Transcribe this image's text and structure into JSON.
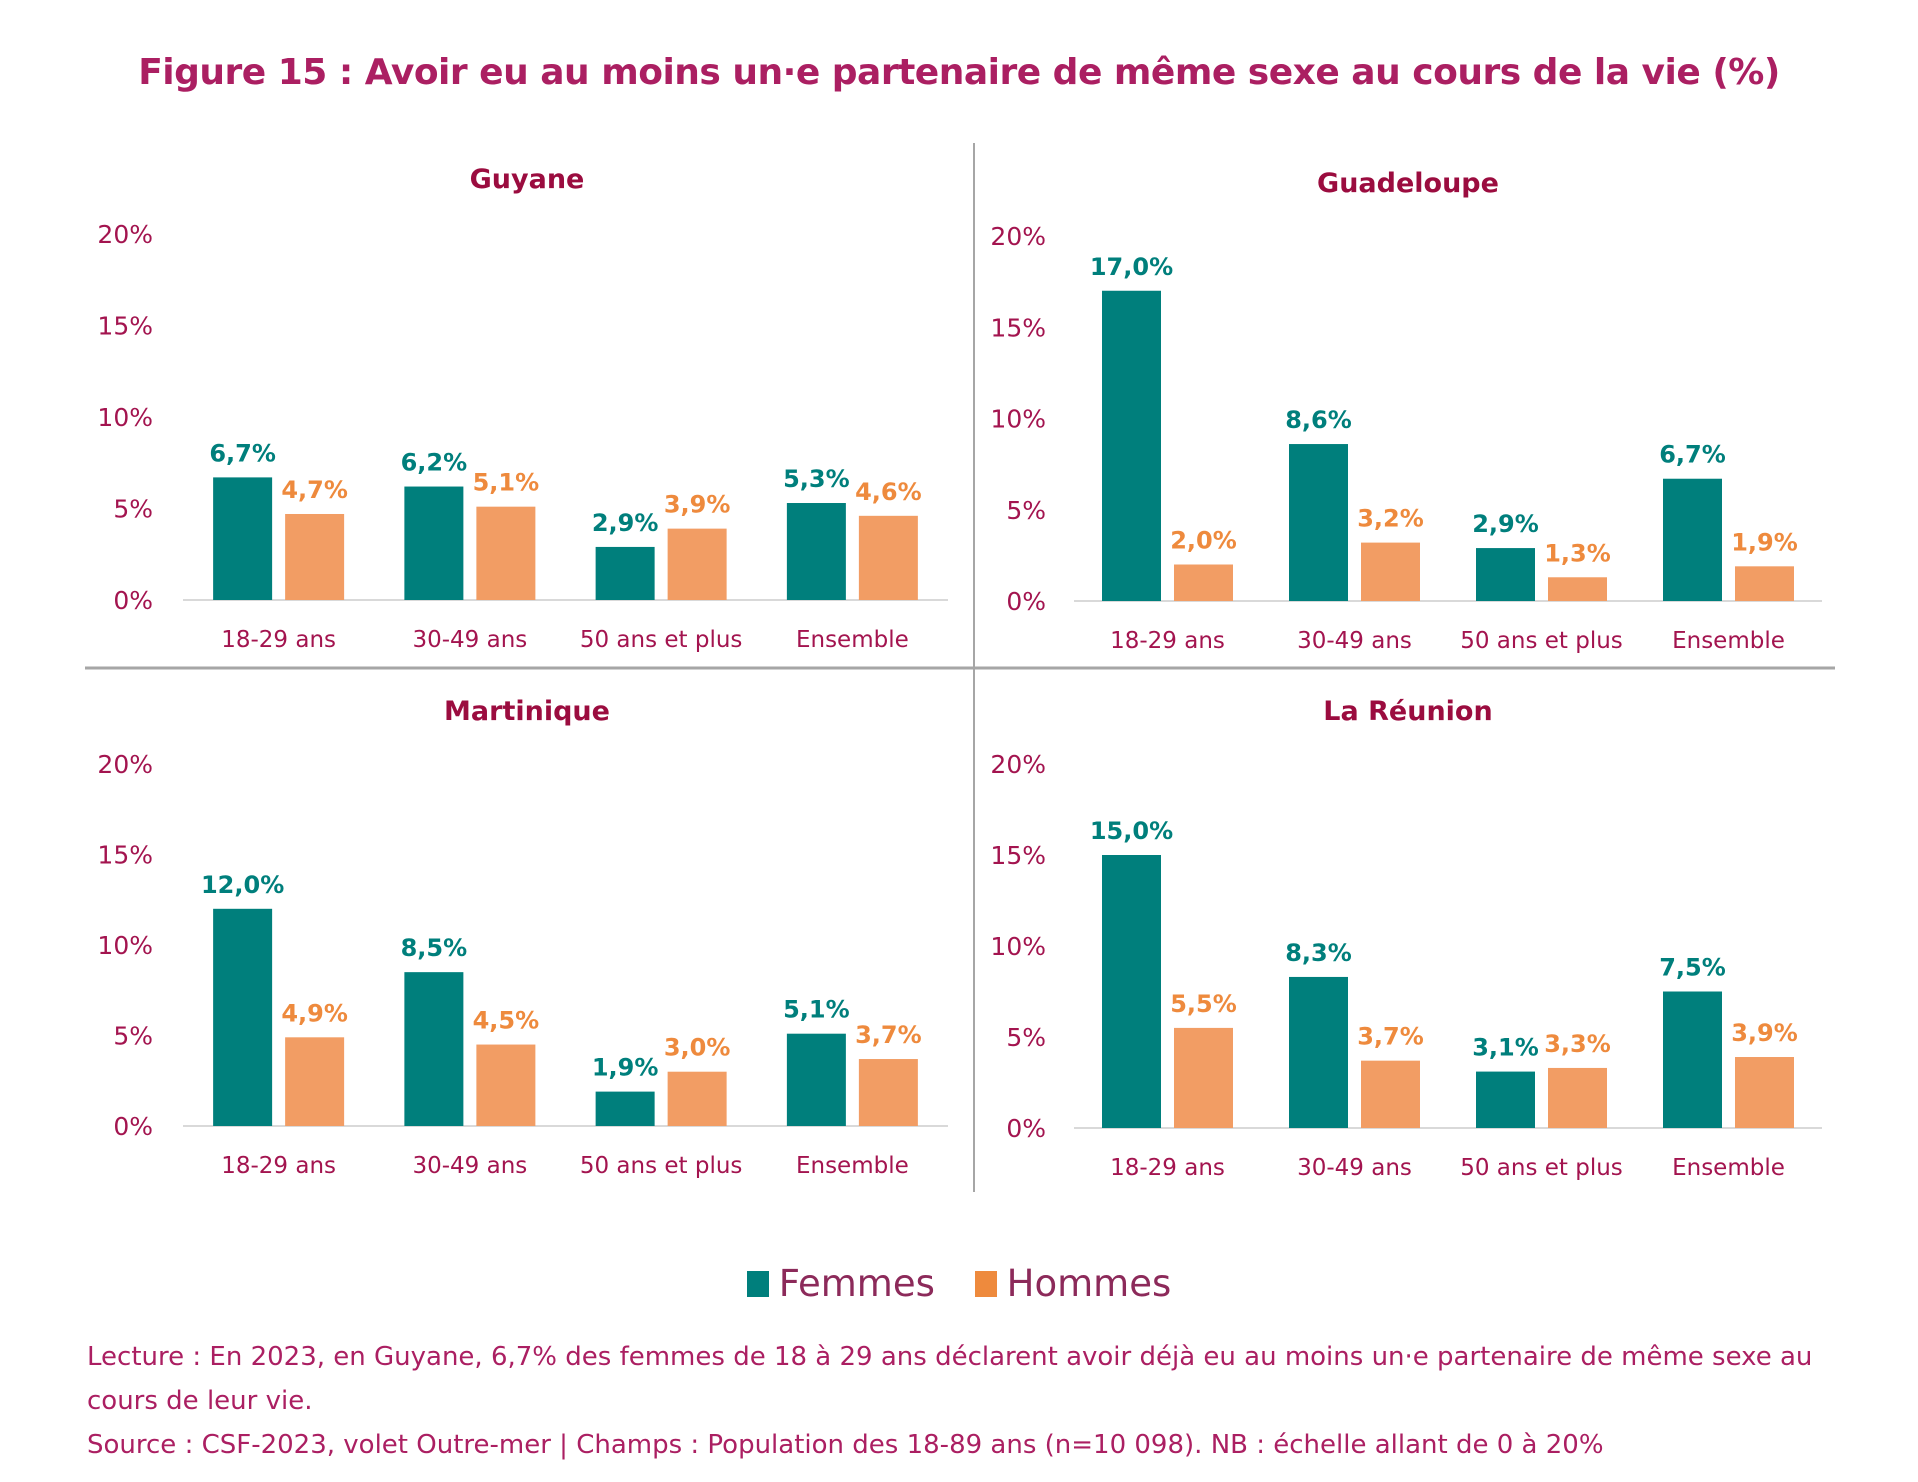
{
  "title": "Figure 15 : Avoir eu au moins un·e partenaire de même sexe au cours de la vie (%)",
  "colors": {
    "femmes": "#007f7c",
    "hommes": "#f29d64",
    "femmes_label": "#007f7c",
    "hommes_label": "#ee8a3d",
    "axis_text": "#a3144f",
    "panel_title": "#9b0c3f"
  },
  "legend": [
    {
      "label": "Femmes",
      "color": "#007f7c"
    },
    {
      "label": "Hommes",
      "color": "#ee8a3d"
    }
  ],
  "footer": {
    "lecture": "Lecture : En 2023, en Guyane, 6,7% des femmes de 18 à 29 ans déclarent avoir déjà eu au moins un·e partenaire de même sexe au cours de leur vie.",
    "source": "Source : CSF-2023, volet Outre-mer | Champs : Population des 18-89 ans (n=10 098). NB : échelle allant de 0 à 20%"
  },
  "chart_data": [
    {
      "type": "bar",
      "title": "Guyane",
      "categories": [
        "18-29 ans",
        "30-49 ans",
        "50 ans et plus",
        "Ensemble"
      ],
      "series": [
        {
          "name": "Femmes",
          "values": [
            6.7,
            6.2,
            2.9,
            5.3
          ],
          "labels": [
            "6,7%",
            "6,2%",
            "2,9%",
            "5,3%"
          ]
        },
        {
          "name": "Hommes",
          "values": [
            4.7,
            5.1,
            3.9,
            4.6
          ],
          "labels": [
            "4,7%",
            "5,1%",
            "3,9%",
            "4,6%"
          ]
        }
      ],
      "yticks": [
        "0%",
        "5%",
        "10%",
        "15%",
        "20%"
      ],
      "ylim": [
        0,
        20
      ],
      "xlabel": "",
      "ylabel": ""
    },
    {
      "type": "bar",
      "title": "Guadeloupe",
      "categories": [
        "18-29 ans",
        "30-49 ans",
        "50 ans et plus",
        "Ensemble"
      ],
      "series": [
        {
          "name": "Femmes",
          "values": [
            17.0,
            8.6,
            2.9,
            6.7
          ],
          "labels": [
            "17,0%",
            "8,6%",
            "2,9%",
            "6,7%"
          ]
        },
        {
          "name": "Hommes",
          "values": [
            2.0,
            3.2,
            1.3,
            1.9
          ],
          "labels": [
            "2,0%",
            "3,2%",
            "1,3%",
            "1,9%"
          ]
        }
      ],
      "yticks": [
        "0%",
        "5%",
        "10%",
        "15%",
        "20%"
      ],
      "ylim": [
        0,
        20
      ],
      "xlabel": "",
      "ylabel": ""
    },
    {
      "type": "bar",
      "title": "Martinique",
      "categories": [
        "18-29 ans",
        "30-49 ans",
        "50 ans et plus",
        "Ensemble"
      ],
      "series": [
        {
          "name": "Femmes",
          "values": [
            12.0,
            8.5,
            1.9,
            5.1
          ],
          "labels": [
            "12,0%",
            "8,5%",
            "1,9%",
            "5,1%"
          ]
        },
        {
          "name": "Hommes",
          "values": [
            4.9,
            4.5,
            3.0,
            3.7
          ],
          "labels": [
            "4,9%",
            "4,5%",
            "3,0%",
            "3,7%"
          ]
        }
      ],
      "yticks": [
        "0%",
        "5%",
        "10%",
        "15%",
        "20%"
      ],
      "ylim": [
        0,
        20
      ],
      "xlabel": "",
      "ylabel": ""
    },
    {
      "type": "bar",
      "title": "La Réunion",
      "categories": [
        "18-29 ans",
        "30-49 ans",
        "50 ans et plus",
        "Ensemble"
      ],
      "series": [
        {
          "name": "Femmes",
          "values": [
            15.0,
            8.3,
            3.1,
            7.5
          ],
          "labels": [
            "15,0%",
            "8,3%",
            "3,1%",
            "7,5%"
          ]
        },
        {
          "name": "Hommes",
          "values": [
            5.5,
            3.7,
            3.3,
            3.9
          ],
          "labels": [
            "5,5%",
            "3,7%",
            "3,3%",
            "3,9%"
          ]
        }
      ],
      "yticks": [
        "0%",
        "5%",
        "10%",
        "15%",
        "20%"
      ],
      "ylim": [
        0,
        20
      ],
      "xlabel": "",
      "ylabel": ""
    }
  ]
}
